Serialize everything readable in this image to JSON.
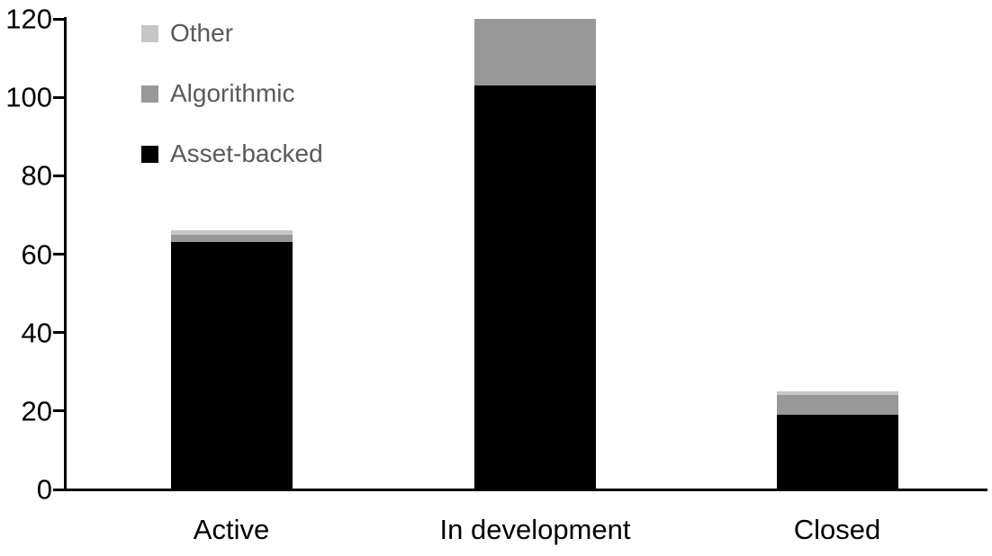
{
  "chart_data": {
    "type": "bar",
    "stacked": true,
    "title": "",
    "xlabel": "",
    "ylabel": "",
    "categories": [
      "Active",
      "In development",
      "Closed"
    ],
    "series": [
      {
        "name": "Asset-backed",
        "color": "#000000",
        "values": [
          63,
          103,
          19
        ]
      },
      {
        "name": "Algorithmic",
        "color": "#989898",
        "values": [
          2,
          17,
          5
        ]
      },
      {
        "name": "Other",
        "color": "#c6c6c6",
        "values": [
          1,
          0,
          1
        ]
      }
    ],
    "totals": [
      66,
      120,
      25
    ],
    "y_ticks": [
      0,
      20,
      40,
      60,
      80,
      100,
      120
    ],
    "ylim": [
      0,
      120
    ],
    "grid": false,
    "legend_position": "top-left-inside",
    "legend_order": [
      "Other",
      "Algorithmic",
      "Asset-backed"
    ],
    "legend_text_color": "#595959",
    "axis_color": "#000000",
    "background_color": "#ffffff"
  }
}
